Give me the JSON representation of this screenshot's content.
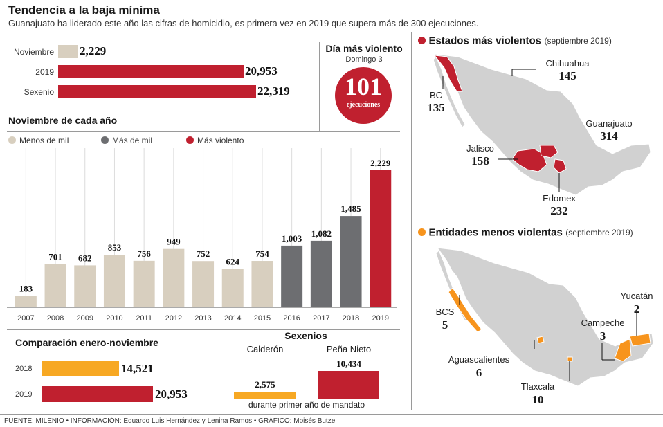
{
  "header": {
    "title": "Tendencia a la baja mínima",
    "subtitle": "Guanajuato ha liderado este año las cifras de homicidio, es primera vez en 2019 que supera más de 300 ejecuciones."
  },
  "summary": {
    "rows": [
      {
        "label": "Noviembre",
        "value": "2,229"
      },
      {
        "label": "2019",
        "value": "20,953"
      },
      {
        "label": "Sexenio",
        "value": "22,319"
      }
    ]
  },
  "violent_day": {
    "title": "Día más violento",
    "date": "Domingo 3",
    "number": "101",
    "unit": "ejecuciones"
  },
  "november": {
    "title": "Noviembre de cada año",
    "legend": [
      {
        "label": "Menos de mil",
        "color": "#d8cfbf"
      },
      {
        "label": "Más de mil",
        "color": "#6d6e71"
      },
      {
        "label": "Más violento",
        "color": "#c0202f"
      }
    ]
  },
  "comparison": {
    "title": "Comparación enero-noviembre",
    "rows": [
      {
        "label": "2018",
        "value": "14,521"
      },
      {
        "label": "2019",
        "value": "20,953"
      }
    ]
  },
  "sexenios": {
    "title": "Sexenios",
    "items": [
      {
        "label": "Calderón",
        "value": "2,575"
      },
      {
        "label": "Peña Nieto",
        "value": "10,434"
      }
    ],
    "note": "durante primer año de mandato"
  },
  "map_violent": {
    "title": "Estados más violentos",
    "qualifier": "(septiembre 2019)",
    "states": [
      {
        "name": "Chihuahua",
        "value": "145"
      },
      {
        "name": "BC",
        "value": "135"
      },
      {
        "name": "Guanajuato",
        "value": "314"
      },
      {
        "name": "Jalisco",
        "value": "158"
      },
      {
        "name": "Edomex",
        "value": "232"
      }
    ]
  },
  "map_least": {
    "title": "Entidades menos violentas",
    "qualifier": "(septiembre 2019)",
    "states": [
      {
        "name": "Yucatán",
        "value": "2"
      },
      {
        "name": "BCS",
        "value": "5"
      },
      {
        "name": "Campeche",
        "value": "3"
      },
      {
        "name": "Aguascalientes",
        "value": "6"
      },
      {
        "name": "Tlaxcala",
        "value": "10"
      }
    ]
  },
  "footer": "FUENTE: MILENIO • INFORMACIÓN: Eduardo Luis Hernández y Lenina Ramos • GRÁFICO: Moisés Butze",
  "chart_data": [
    {
      "type": "bar",
      "title": "Tendencia a la baja mínima",
      "orientation": "horizontal",
      "categories": [
        "Noviembre",
        "2019",
        "Sexenio"
      ],
      "values": [
        2229,
        20953,
        22319
      ],
      "colors": [
        "#d8cfbf",
        "#c0202f",
        "#c0202f"
      ]
    },
    {
      "type": "bar",
      "title": "Noviembre de cada año",
      "categories": [
        "2007",
        "2008",
        "2009",
        "2010",
        "2011",
        "2012",
        "2013",
        "2014",
        "2015",
        "2016",
        "2017",
        "2018",
        "2019"
      ],
      "values": [
        183,
        701,
        682,
        853,
        756,
        949,
        752,
        624,
        754,
        1003,
        1082,
        1485,
        2229
      ],
      "labels": [
        "183",
        "701",
        "682",
        "853",
        "756",
        "949",
        "752",
        "624",
        "754",
        "1,003",
        "1,082",
        "1,485",
        "2,229"
      ],
      "groups": [
        "Menos de mil",
        "Menos de mil",
        "Menos de mil",
        "Menos de mil",
        "Menos de mil",
        "Menos de mil",
        "Menos de mil",
        "Menos de mil",
        "Menos de mil",
        "Más de mil",
        "Más de mil",
        "Más de mil",
        "Más violento"
      ],
      "ylim": [
        0,
        2229
      ]
    },
    {
      "type": "bar",
      "title": "Comparación enero-noviembre",
      "orientation": "horizontal",
      "categories": [
        "2018",
        "2019"
      ],
      "values": [
        14521,
        20953
      ]
    },
    {
      "type": "bar",
      "title": "Sexenios",
      "categories": [
        "Calderón",
        "Peña Nieto"
      ],
      "values": [
        2575,
        10434
      ],
      "xlabel": "durante primer año de mandato"
    }
  ]
}
